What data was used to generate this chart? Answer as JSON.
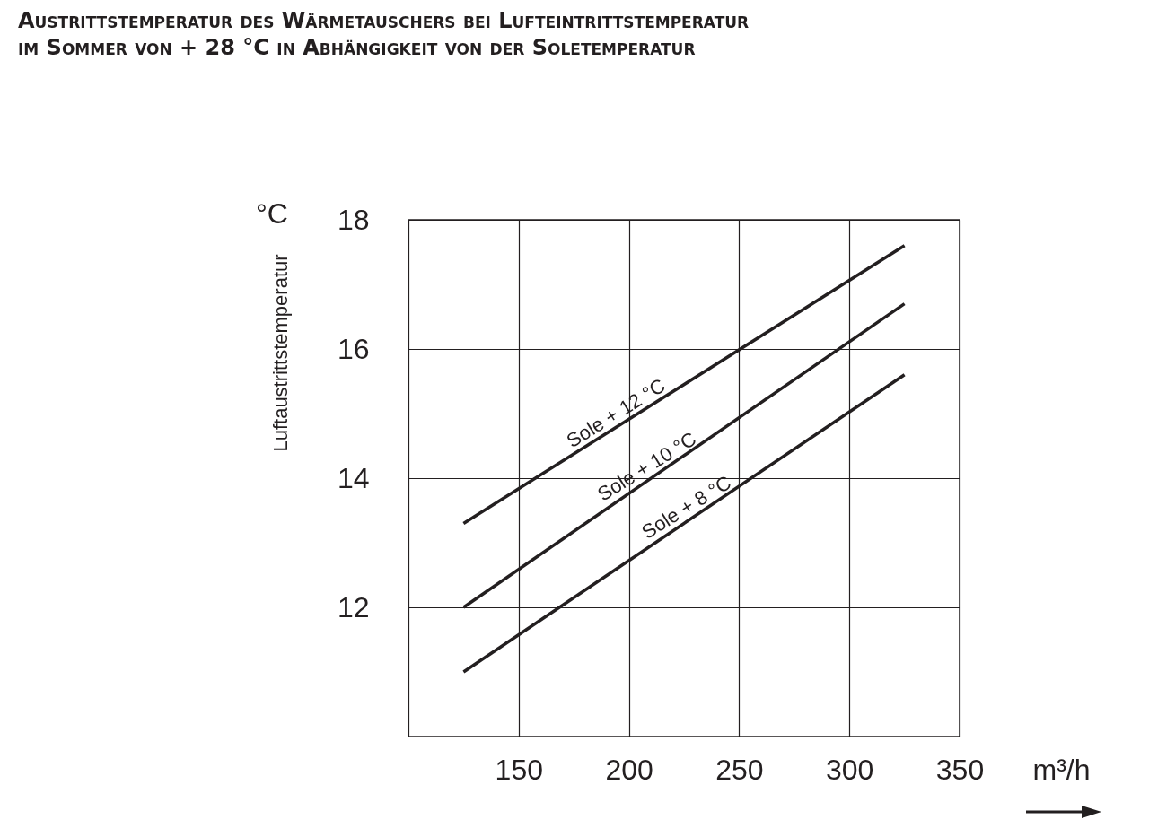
{
  "chart_data": {
    "type": "line",
    "title": "Austrittstemperatur des Wärmetauschers bei Lufteintrittstemperatur",
    "subtitle": "im Sommer von + 28 °C in Abhängigkeit von der Soletemperatur",
    "xlabel": "m³/h",
    "ylabel": "Luftaustrittstemperatur",
    "annotations": [
      "°C"
    ],
    "xlim": [
      100,
      350
    ],
    "xticks": [
      {
        "value": 100,
        "label": null
      },
      150,
      200,
      250,
      300,
      350
    ],
    "ylim": [
      10,
      18
    ],
    "yticks": [
      {
        "value": 10,
        "label": null
      },
      12,
      14,
      16,
      18
    ],
    "grid": true,
    "legend": false,
    "marker": "none",
    "line_style": "solid",
    "x": [
      125,
      325
    ],
    "series": [
      {
        "name": "Sole + 12 °C",
        "color": "#231f20",
        "values": [
          13.3,
          17.6
        ]
      },
      {
        "name": "Sole + 10 °C",
        "color": "#231f20",
        "values": [
          12.0,
          16.7
        ]
      },
      {
        "name": "Sole + 8 °C",
        "color": "#231f20",
        "values": [
          11.0,
          15.6
        ]
      }
    ]
  }
}
